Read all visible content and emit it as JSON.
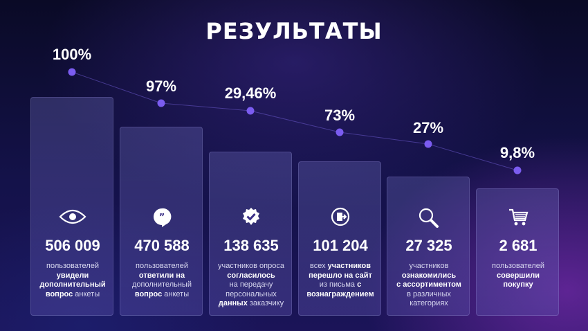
{
  "title": "РЕЗУЛЬТАТЫ",
  "colors": {
    "dot": "#7b5cf0",
    "line": "#5a4ab0"
  },
  "chart_data": {
    "type": "bar",
    "categories": [
      "506 009",
      "470 588",
      "138 635",
      "101 204",
      "27 325",
      "2 681"
    ],
    "percent_labels": [
      "100%",
      "97%",
      "29,46%",
      "73%",
      "27%",
      "9,8%"
    ],
    "items": [
      {
        "value": "506 009",
        "percent": "100%",
        "icon": "eye-icon",
        "desc": [
          [
            {
              "t": "пользователей",
              "b": false
            }
          ],
          [
            {
              "t": "увидели",
              "b": true
            }
          ],
          [
            {
              "t": "дополнительный",
              "b": true
            }
          ],
          [
            {
              "t": "вопрос",
              "b": true
            },
            {
              "t": " анкеты",
              "b": false
            }
          ]
        ]
      },
      {
        "value": "470 588",
        "percent": "97%",
        "icon": "quote-bubble-icon",
        "desc": [
          [
            {
              "t": "пользователей",
              "b": false
            }
          ],
          [
            {
              "t": "ответили на",
              "b": true
            }
          ],
          [
            {
              "t": "дополнительный",
              "b": false
            }
          ],
          [
            {
              "t": "вопрос",
              "b": true
            },
            {
              "t": " анкеты",
              "b": false
            }
          ]
        ]
      },
      {
        "value": "138 635",
        "percent": "29,46%",
        "icon": "check-badge-icon",
        "desc": [
          [
            {
              "t": "участников опроса",
              "b": false
            }
          ],
          [
            {
              "t": "согласилось",
              "b": true
            }
          ],
          [
            {
              "t": "на передачу",
              "b": false
            }
          ],
          [
            {
              "t": "персональных",
              "b": false
            }
          ],
          [
            {
              "t": "данных",
              "b": true
            },
            {
              "t": " заказчику",
              "b": false
            }
          ]
        ]
      },
      {
        "value": "101 204",
        "percent": "73%",
        "icon": "exit-door-icon",
        "desc": [
          [
            {
              "t": "всех ",
              "b": false
            },
            {
              "t": "участников",
              "b": true
            }
          ],
          [
            {
              "t": "перешло на сайт",
              "b": true
            }
          ],
          [
            {
              "t": "из письма ",
              "b": false
            },
            {
              "t": "с",
              "b": true
            }
          ],
          [
            {
              "t": "вознаграждением",
              "b": true
            }
          ]
        ]
      },
      {
        "value": "27 325",
        "percent": "27%",
        "icon": "magnifier-icon",
        "desc": [
          [
            {
              "t": "участников",
              "b": false
            }
          ],
          [
            {
              "t": "ознакомились",
              "b": true
            }
          ],
          [
            {
              "t": "с ассортиментом",
              "b": true
            }
          ],
          [
            {
              "t": "в различных",
              "b": false
            }
          ],
          [
            {
              "t": "категориях",
              "b": false
            }
          ]
        ]
      },
      {
        "value": "2 681",
        "percent": "9,8%",
        "icon": "shopping-cart-icon",
        "desc": [
          [
            {
              "t": "пользователей",
              "b": false
            }
          ],
          [
            {
              "t": "совершили",
              "b": true
            }
          ],
          [
            {
              "t": "покупку",
              "b": true
            }
          ]
        ]
      }
    ]
  }
}
